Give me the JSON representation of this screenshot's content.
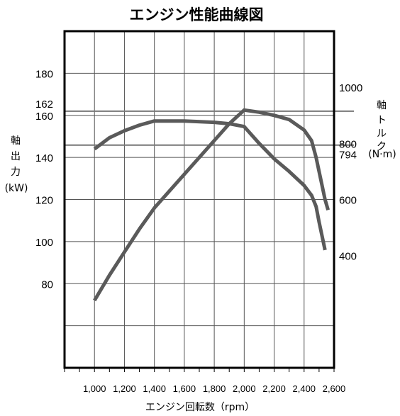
{
  "chart_data": {
    "type": "line",
    "title": "エンジン性能曲線図",
    "xlabel": "エンジン回転数（rpm）",
    "ylabel_left": [
      "軸",
      "出",
      "力",
      "(kW)"
    ],
    "ylabel_right": [
      "軸",
      "ト",
      "ル",
      "ク",
      "(N·m)"
    ],
    "x_ticks": [
      "1,000",
      "1,200",
      "1,400",
      "1,600",
      "1,800",
      "2,000",
      "2,200",
      "2,400",
      "2,600"
    ],
    "left_ticks": [
      {
        "label": "80",
        "value": 80
      },
      {
        "label": "100",
        "value": 100
      },
      {
        "label": "120",
        "value": 120
      },
      {
        "label": "140",
        "value": 140
      },
      {
        "label": "160",
        "value": 160
      },
      {
        "label": "162",
        "value": 162
      },
      {
        "label": "180",
        "value": 180
      }
    ],
    "right_ticks": [
      {
        "label": "400",
        "value": 400
      },
      {
        "label": "600",
        "value": 600
      },
      {
        "label": "794",
        "value": 794
      },
      {
        "label": "800",
        "value": 800
      },
      {
        "label": "1000",
        "value": 1000
      }
    ],
    "xlim": [
      800,
      2600
    ],
    "ylim_left": [
      40,
      200
    ],
    "ylim_right": [
      0,
      1200
    ],
    "grid": true,
    "reference_lines": [
      {
        "axis": "left",
        "value": 162
      },
      {
        "axis": "right",
        "value": 794
      }
    ],
    "series": [
      {
        "axis": "left",
        "x": [
          1000,
          1100,
          1200,
          1300,
          1400,
          1500,
          1600,
          1700,
          1800,
          1900,
          2000,
          2050,
          2100,
          2200,
          2300,
          2400,
          2450,
          2480,
          2510,
          2540,
          2560
        ],
        "values": [
          72,
          84,
          95,
          106,
          116,
          124,
          132,
          140,
          148,
          156,
          162.5,
          162,
          161.5,
          160,
          158,
          153,
          148,
          140,
          130,
          120,
          115
        ]
      },
      {
        "axis": "right",
        "x": [
          1000,
          1100,
          1200,
          1300,
          1400,
          1600,
          1800,
          1900,
          2000,
          2100,
          2200,
          2300,
          2400,
          2450,
          2480,
          2500,
          2520,
          2540
        ],
        "values": [
          780,
          820,
          845,
          865,
          880,
          880,
          875,
          870,
          860,
          800,
          745,
          700,
          650,
          615,
          575,
          520,
          470,
          420
        ]
      }
    ],
    "colors": {
      "curve": "#5a5a5a",
      "grid": "#555555",
      "refline": "#777777",
      "frame": "#000000"
    }
  }
}
